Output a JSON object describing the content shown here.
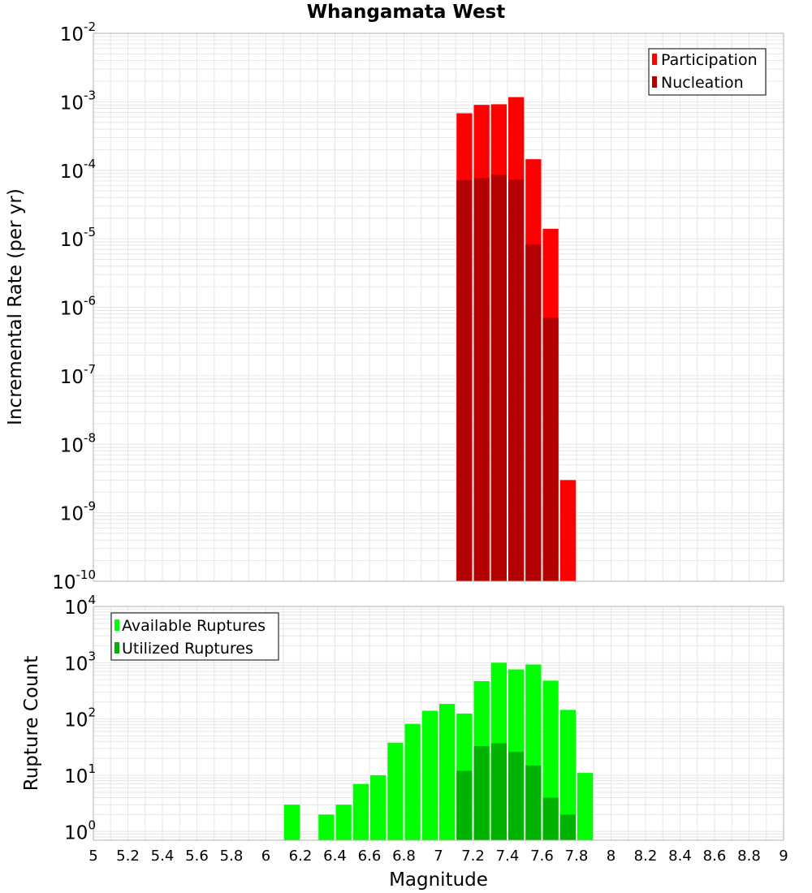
{
  "title": "Whangamata West",
  "colors": {
    "participation": "#ff0000",
    "nucleation": "#b30000",
    "available": "#00ff00",
    "utilized": "#00b300",
    "grid": "#e6e6e6",
    "frame": "#b0b0b0"
  },
  "chart_data": [
    {
      "type": "bar",
      "scale": "log",
      "xlabel": "Magnitude",
      "ylabel": "Incremental Rate (per yr)",
      "xlim": [
        5,
        9
      ],
      "ylim": [
        1e-10,
        0.01
      ],
      "y_ticks": [
        {
          "base": "10",
          "exp": "-2"
        },
        {
          "base": "10",
          "exp": "-3"
        },
        {
          "base": "10",
          "exp": "-4"
        },
        {
          "base": "10",
          "exp": "-5"
        },
        {
          "base": "10",
          "exp": "-6"
        },
        {
          "base": "10",
          "exp": "-7"
        },
        {
          "base": "10",
          "exp": "-8"
        },
        {
          "base": "10",
          "exp": "-9"
        },
        {
          "base": "10",
          "exp": "-10"
        }
      ],
      "legend": [
        "Participation",
        "Nucleation"
      ],
      "legend_position": "top-right",
      "series": [
        {
          "name": "Participation",
          "x": [
            7.15,
            7.25,
            7.35,
            7.45,
            7.55,
            7.65,
            7.75
          ],
          "values": [
            0.00068,
            0.0009,
            0.00092,
            0.00117,
            0.000145,
            1.4e-05,
            3e-09
          ]
        },
        {
          "name": "Nucleation",
          "x": [
            7.15,
            7.25,
            7.35,
            7.45,
            7.55,
            7.65
          ],
          "values": [
            7.2e-05,
            7.7e-05,
            8.6e-05,
            7.3e-05,
            8.2e-06,
            7e-07
          ]
        }
      ]
    },
    {
      "type": "bar",
      "scale": "log",
      "xlabel": "Magnitude",
      "ylabel": "Rupture Count",
      "xlim": [
        5,
        9
      ],
      "ylim": [
        0.7,
        10000
      ],
      "y_ticks": [
        {
          "base": "10",
          "exp": "4"
        },
        {
          "base": "10",
          "exp": "3"
        },
        {
          "base": "10",
          "exp": "2"
        },
        {
          "base": "10",
          "exp": "1"
        },
        {
          "base": "10",
          "exp": "0"
        }
      ],
      "x_ticks": [
        "5",
        "5.2",
        "5.4",
        "5.6",
        "5.8",
        "6",
        "6.2",
        "6.4",
        "6.6",
        "6.8",
        "7",
        "7.2",
        "7.4",
        "7.6",
        "7.8",
        "8",
        "8.2",
        "8.4",
        "8.6",
        "8.8",
        "9"
      ],
      "legend": [
        "Available Ruptures",
        "Utilized Ruptures"
      ],
      "legend_position": "top-left",
      "series": [
        {
          "name": "Available Ruptures",
          "x": [
            6.15,
            6.35,
            6.45,
            6.55,
            6.65,
            6.75,
            6.85,
            6.95,
            7.05,
            7.15,
            7.25,
            7.35,
            7.45,
            7.55,
            7.65,
            7.75,
            7.85
          ],
          "values": [
            3,
            2,
            3,
            7,
            10,
            38,
            82,
            140,
            185,
            125,
            470,
            1000,
            760,
            930,
            480,
            145,
            11
          ]
        },
        {
          "name": "Utilized Ruptures",
          "x": [
            7.15,
            7.25,
            7.35,
            7.45,
            7.55,
            7.65,
            7.75
          ],
          "values": [
            12,
            33,
            37,
            26,
            15,
            4,
            2
          ]
        }
      ]
    }
  ]
}
